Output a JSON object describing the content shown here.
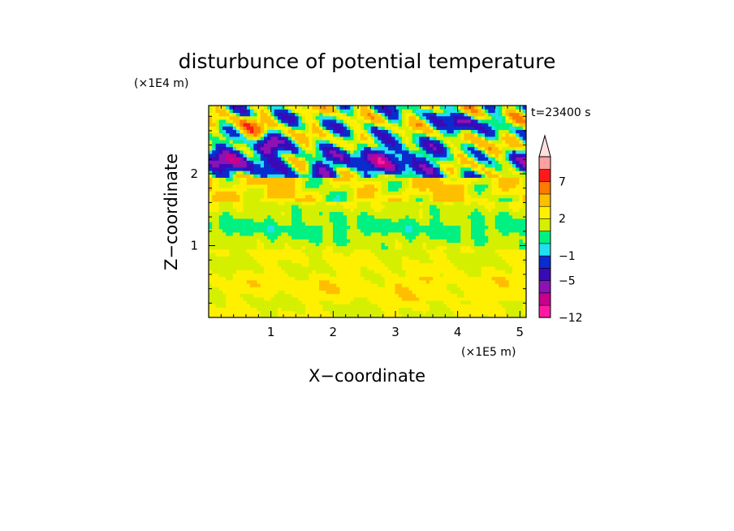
{
  "chart_data": {
    "type": "heatmap",
    "title": "disturbunce of potential temperature",
    "xlabel": "X−coordinate",
    "ylabel": "Z−coordinate",
    "x_unit": "(×1E5 m)",
    "y_unit": "(×1E4 m)",
    "time_label": "t=23400 s",
    "xlim": [
      0,
      5.1
    ],
    "ylim": [
      0,
      2.95
    ],
    "x_ticks": [
      {
        "value": 1,
        "label": "1"
      },
      {
        "value": 2,
        "label": "2"
      },
      {
        "value": 3,
        "label": "3"
      },
      {
        "value": 4,
        "label": "4"
      },
      {
        "value": 5,
        "label": "5"
      }
    ],
    "y_ticks": [
      {
        "value": 1,
        "label": "1"
      },
      {
        "value": 2,
        "label": "2"
      }
    ],
    "colorbar": {
      "levels": [
        -12,
        -9,
        -7,
        -5,
        -3,
        -1,
        0,
        1,
        2,
        3,
        5,
        7,
        9,
        12
      ],
      "colors": [
        "#ff1aa3",
        "#c8008c",
        "#8c12b4",
        "#3a0ab8",
        "#0a2ccc",
        "#20e0f0",
        "#00f082",
        "#d4f000",
        "#fff000",
        "#ffbe00",
        "#ff7a00",
        "#ff1a1a",
        "#ffa0a0"
      ],
      "extend_color": "#ffe0e0",
      "labels": [
        {
          "value": 7,
          "label": "7"
        },
        {
          "value": 2,
          "label": "2"
        },
        {
          "value": -1,
          "label": "−1"
        },
        {
          "value": -5,
          "label": "−5"
        },
        {
          "value": -12,
          "label": "−12"
        }
      ]
    }
  }
}
